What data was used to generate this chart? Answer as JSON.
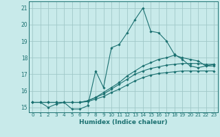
{
  "xlabel": "Humidex (Indice chaleur)",
  "bg_color": "#c8eaea",
  "grid_color": "#a0c8c8",
  "line_color": "#1a7070",
  "xlim": [
    -0.5,
    23.5
  ],
  "ylim": [
    14.7,
    21.4
  ],
  "yticks": [
    15,
    16,
    17,
    18,
    19,
    20,
    21
  ],
  "xticks": [
    0,
    1,
    2,
    3,
    4,
    5,
    6,
    7,
    8,
    9,
    10,
    11,
    12,
    13,
    14,
    15,
    16,
    17,
    18,
    19,
    20,
    21,
    22,
    23
  ],
  "series": [
    [
      15.3,
      15.3,
      15.0,
      15.2,
      15.3,
      14.9,
      14.9,
      15.1,
      17.2,
      16.2,
      18.6,
      18.8,
      19.5,
      20.3,
      21.0,
      19.6,
      19.5,
      19.0,
      18.2,
      17.9,
      17.5,
      17.4,
      17.5,
      17.6
    ],
    [
      15.3,
      15.3,
      15.3,
      15.3,
      15.3,
      15.3,
      15.3,
      15.4,
      15.6,
      15.9,
      16.2,
      16.5,
      16.9,
      17.2,
      17.5,
      17.7,
      17.9,
      18.0,
      18.15,
      18.0,
      17.9,
      17.8,
      17.5,
      17.5
    ],
    [
      15.3,
      15.3,
      15.3,
      15.3,
      15.3,
      15.3,
      15.3,
      15.4,
      15.6,
      15.8,
      16.1,
      16.4,
      16.7,
      17.0,
      17.2,
      17.35,
      17.45,
      17.55,
      17.6,
      17.65,
      17.65,
      17.65,
      17.6,
      17.6
    ],
    [
      15.3,
      15.3,
      15.3,
      15.3,
      15.3,
      15.3,
      15.3,
      15.35,
      15.5,
      15.65,
      15.9,
      16.1,
      16.35,
      16.6,
      16.8,
      16.95,
      17.05,
      17.1,
      17.15,
      17.2,
      17.2,
      17.2,
      17.2,
      17.2
    ]
  ]
}
